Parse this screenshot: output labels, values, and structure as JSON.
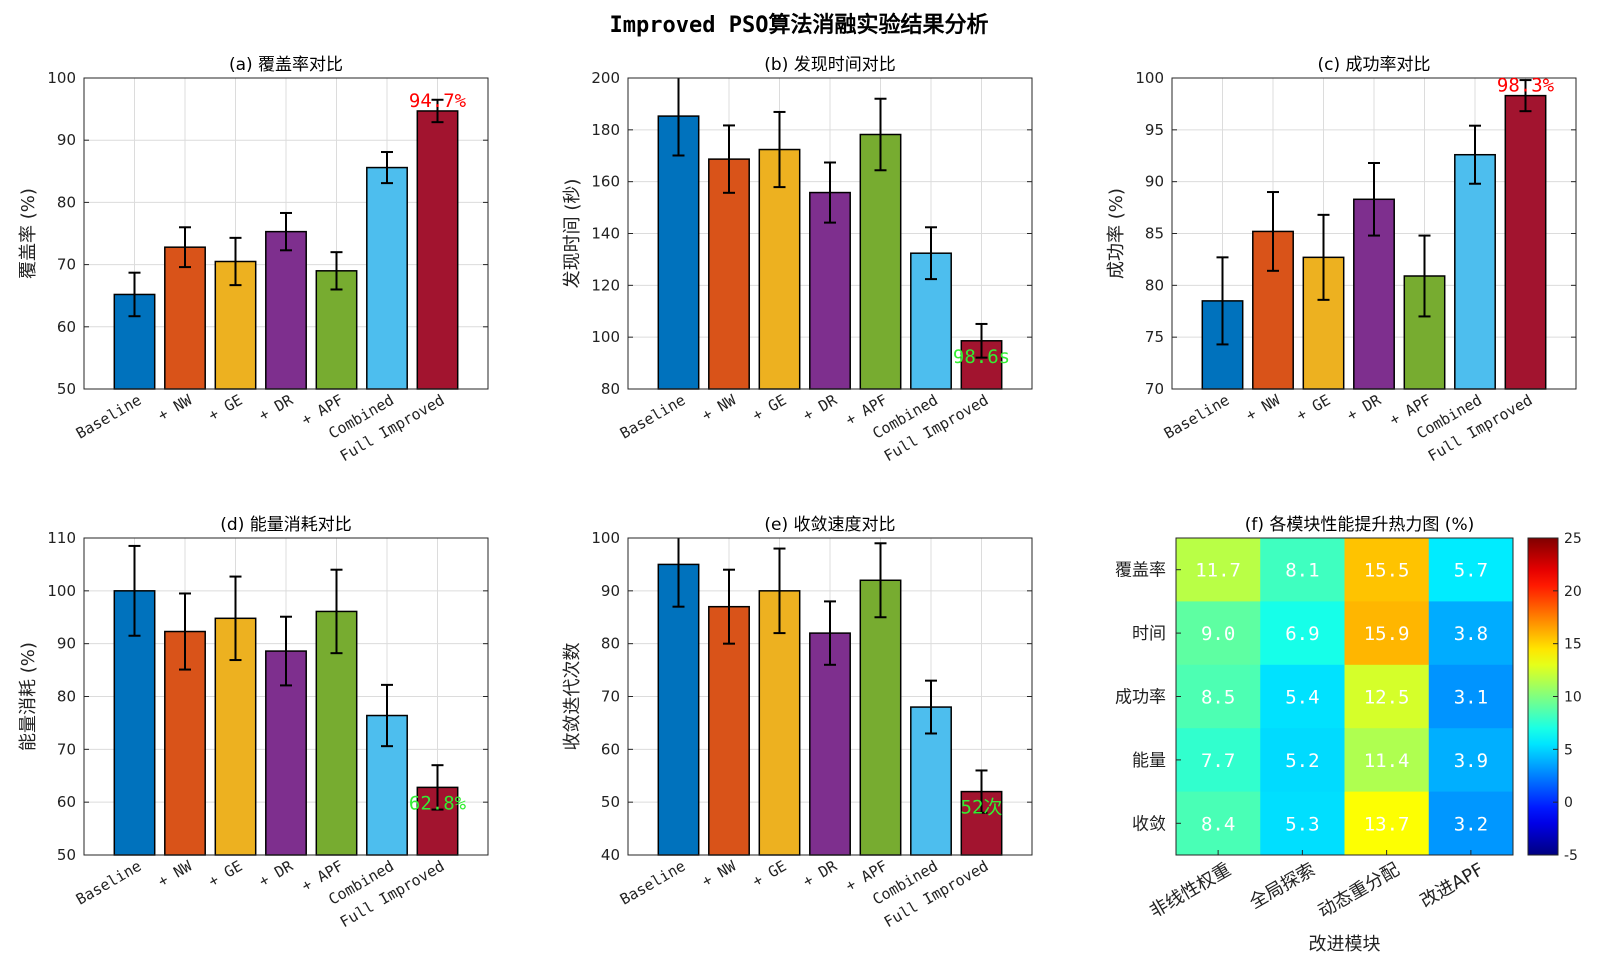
{
  "title": "Improved PSO算法消融实验结果分析",
  "colors": {
    "bars": [
      "#0072BD",
      "#D95319",
      "#EDB120",
      "#7E2F8E",
      "#77AC30",
      "#4DBEEE",
      "#A2142F"
    ],
    "annotation_red": "#ff0000",
    "annotation_green": "#33ee33"
  },
  "chart_data": [
    {
      "id": "a",
      "type": "bar",
      "title": "(a) 覆盖率对比",
      "ylabel": "覆盖率 (%)",
      "categories": [
        "Baseline",
        "+ NW",
        "+ GE",
        "+ DR",
        "+ APF",
        "Combined",
        "Full Improved"
      ],
      "values": [
        65.2,
        72.8,
        70.5,
        75.3,
        69.0,
        85.6,
        94.7
      ],
      "errors": [
        3.5,
        3.2,
        3.8,
        3.0,
        3.0,
        2.5,
        1.8
      ],
      "ylim": [
        50,
        100
      ],
      "yticks": [
        50,
        60,
        70,
        80,
        90,
        100
      ],
      "annotation": {
        "text": "94.7%",
        "color": "#ff0000",
        "bar": 6,
        "pos": "above"
      }
    },
    {
      "id": "b",
      "type": "bar",
      "title": "(b) 发现时间对比",
      "ylabel": "发现时间 (秒)",
      "categories": [
        "Baseline",
        "+ NW",
        "+ GE",
        "+ DR",
        "+ APF",
        "Combined",
        "Full Improved"
      ],
      "values": [
        185.3,
        168.7,
        172.4,
        155.8,
        178.2,
        132.4,
        98.6
      ],
      "errors": [
        15.2,
        13.0,
        14.5,
        11.6,
        13.8,
        10.0,
        6.5
      ],
      "ylim": [
        80,
        200
      ],
      "yticks": [
        80,
        100,
        120,
        140,
        160,
        180,
        200
      ],
      "annotation": {
        "text": "98.6s",
        "color": "#33ee33",
        "bar": 6,
        "pos": "inside"
      }
    },
    {
      "id": "c",
      "type": "bar",
      "title": "(c) 成功率对比",
      "ylabel": "成功率 (%)",
      "categories": [
        "Baseline",
        "+ NW",
        "+ GE",
        "+ DR",
        "+ APF",
        "Combined",
        "Full Improved"
      ],
      "values": [
        78.5,
        85.2,
        82.7,
        88.3,
        80.9,
        92.6,
        98.3
      ],
      "errors": [
        4.2,
        3.8,
        4.1,
        3.5,
        3.9,
        2.8,
        1.5
      ],
      "ylim": [
        70,
        100
      ],
      "yticks": [
        70,
        75,
        80,
        85,
        90,
        95,
        100
      ],
      "annotation": {
        "text": "98.3%",
        "color": "#ff0000",
        "bar": 6,
        "pos": "above"
      }
    },
    {
      "id": "d",
      "type": "bar",
      "title": "(d) 能量消耗对比",
      "ylabel": "能量消耗 (%)",
      "categories": [
        "Baseline",
        "+ NW",
        "+ GE",
        "+ DR",
        "+ APF",
        "Combined",
        "Full Improved"
      ],
      "values": [
        100.0,
        92.3,
        94.8,
        88.6,
        96.1,
        76.4,
        62.8
      ],
      "errors": [
        8.5,
        7.2,
        7.9,
        6.5,
        7.9,
        5.8,
        4.2
      ],
      "ylim": [
        50,
        110
      ],
      "yticks": [
        50,
        60,
        70,
        80,
        90,
        100,
        110
      ],
      "annotation": {
        "text": "62.8%",
        "color": "#33ee33",
        "bar": 6,
        "pos": "inside"
      }
    },
    {
      "id": "e",
      "type": "bar",
      "title": "(e) 收敛速度对比",
      "ylabel": "收敛迭代次数",
      "categories": [
        "Baseline",
        "+ NW",
        "+ GE",
        "+ DR",
        "+ APF",
        "Combined",
        "Full Improved"
      ],
      "values": [
        95,
        87,
        90,
        82,
        92,
        68,
        52
      ],
      "errors": [
        8,
        7,
        8,
        6,
        7,
        5,
        4
      ],
      "ylim": [
        40,
        100
      ],
      "yticks": [
        40,
        50,
        60,
        70,
        80,
        90,
        100
      ],
      "annotation": {
        "text": "52次",
        "color": "#33ee33",
        "bar": 6,
        "pos": "inside"
      }
    },
    {
      "id": "f",
      "type": "heatmap",
      "title": "(f) 各模块性能提升热力图 (%)",
      "xlabel": "改进模块",
      "columns": [
        "非线性权重",
        "全局探索",
        "动态重分配",
        "改进APF"
      ],
      "rows": [
        "覆盖率",
        "时间",
        "成功率",
        "能量",
        "收敛"
      ],
      "values": [
        [
          11.7,
          8.1,
          15.5,
          5.7
        ],
        [
          9.0,
          6.9,
          15.9,
          3.8
        ],
        [
          8.5,
          5.4,
          12.5,
          3.1
        ],
        [
          7.7,
          5.2,
          11.4,
          3.9
        ],
        [
          8.4,
          5.3,
          13.7,
          3.2
        ]
      ],
      "labels": [
        [
          "11.7",
          "8.1",
          "15.5",
          "5.7"
        ],
        [
          "9.0",
          "6.9",
          "15.9",
          "3.8"
        ],
        [
          "8.5",
          "5.4",
          "12.5",
          "3.1"
        ],
        [
          "7.7",
          "5.2",
          "11.4",
          "3.9"
        ],
        [
          "8.4",
          "5.3",
          "13.7",
          "3.2"
        ]
      ],
      "clim": [
        -5,
        25
      ],
      "colorbar_ticks": [
        -5,
        0,
        5,
        10,
        15,
        20,
        25
      ],
      "colormap": "jet"
    }
  ]
}
